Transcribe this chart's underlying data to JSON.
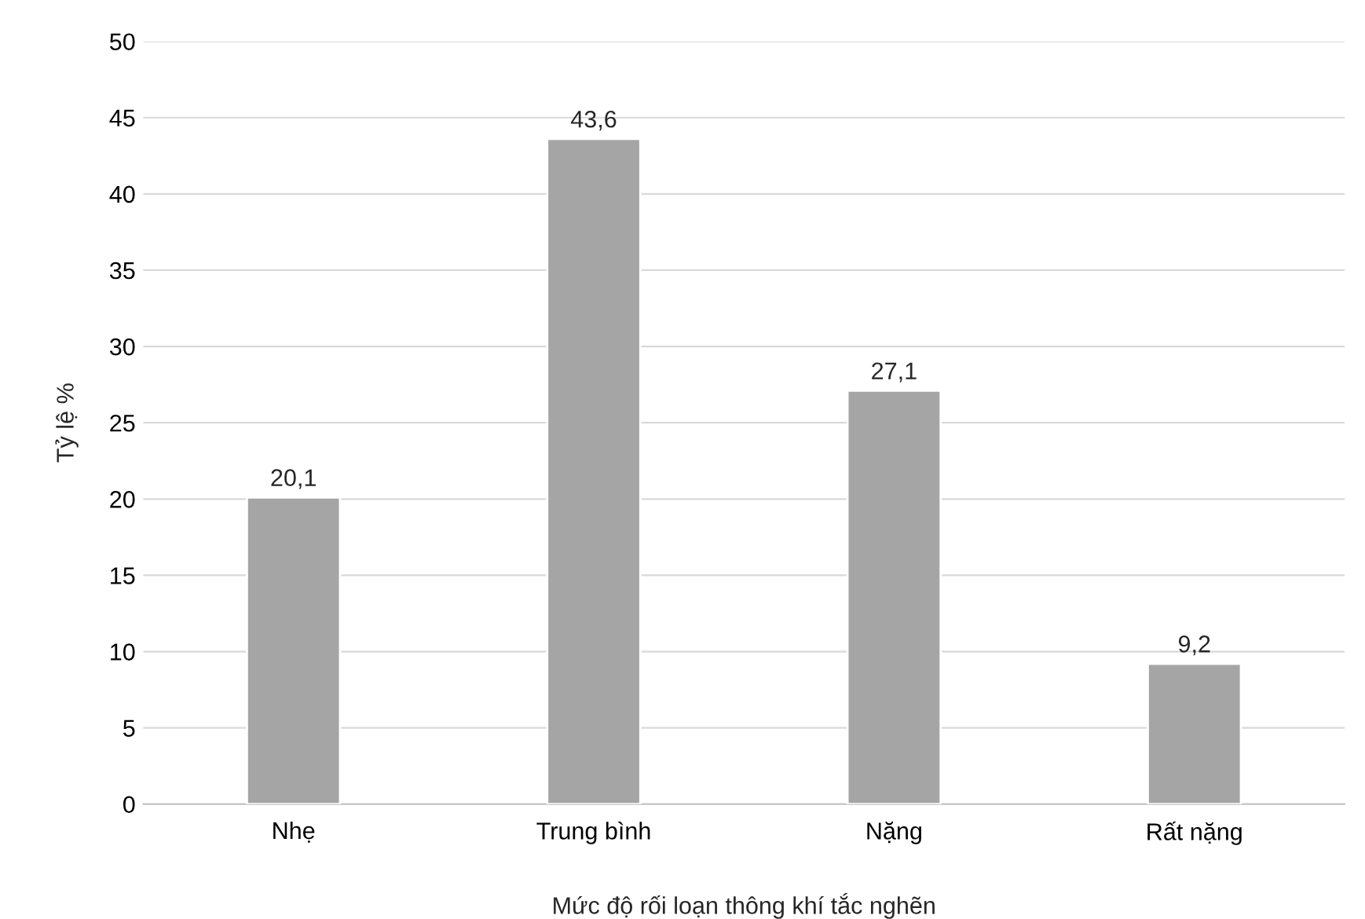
{
  "chart_data": {
    "type": "bar",
    "xlabel": "Mức độ rối loạn thông khí tắc nghẽn",
    "ylabel": "Tỷ lệ %",
    "categories": [
      "Nhẹ",
      "Trung bình",
      "Nặng",
      "Rất nặng"
    ],
    "values": [
      20.1,
      43.6,
      27.1,
      9.2
    ],
    "value_labels": [
      "20,1",
      "43,6",
      "27,1",
      "9,2"
    ],
    "color": "#a5a5a5",
    "ylim": [
      0,
      50
    ],
    "yticks": [
      0,
      5,
      10,
      15,
      20,
      25,
      30,
      35,
      40,
      45,
      50
    ],
    "grid": "y"
  }
}
